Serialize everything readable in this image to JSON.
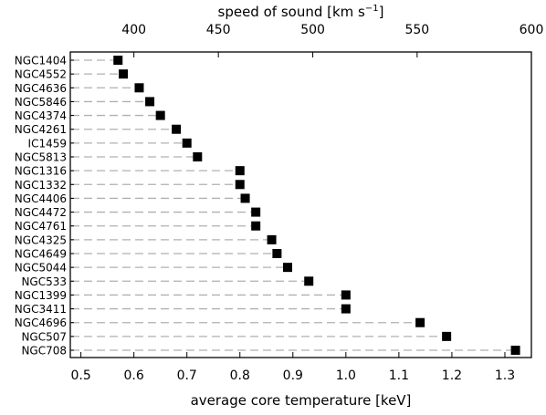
{
  "chart_data": {
    "type": "scatter",
    "orientation": "horizontal",
    "categories": [
      "NGC1404",
      "NGC4552",
      "NGC4636",
      "NGC5846",
      "NGC4374",
      "NGC4261",
      "IC1459",
      "NGC5813",
      "NGC1316",
      "NGC1332",
      "NGC4406",
      "NGC4472",
      "NGC4761",
      "NGC4325",
      "NGC4649",
      "NGC5044",
      "NGC533",
      "NGC1399",
      "NGC3411",
      "NGC4696",
      "NGC507",
      "NGC708"
    ],
    "values": [
      0.57,
      0.58,
      0.61,
      0.63,
      0.65,
      0.68,
      0.7,
      0.72,
      0.8,
      0.8,
      0.81,
      0.83,
      0.83,
      0.86,
      0.87,
      0.89,
      0.93,
      1.0,
      1.0,
      1.14,
      1.19,
      1.32
    ],
    "xlabel": "average core temperature [keV]",
    "xlim": [
      0.48,
      1.35
    ],
    "xticks": [
      "0.5",
      "0.6",
      "0.7",
      "0.8",
      "0.9",
      "1.0",
      "1.1",
      "1.2",
      "1.3"
    ],
    "top_axis": {
      "label": "speed of sound [km s",
      "label_superscript": "−1",
      "label_close": "]",
      "ticks": [
        "400",
        "450",
        "500",
        "550",
        "600"
      ]
    },
    "grid": false,
    "legend": "none",
    "marker": "square",
    "marker_color": "#000000",
    "guide_line_color": "#b0b0b0"
  }
}
